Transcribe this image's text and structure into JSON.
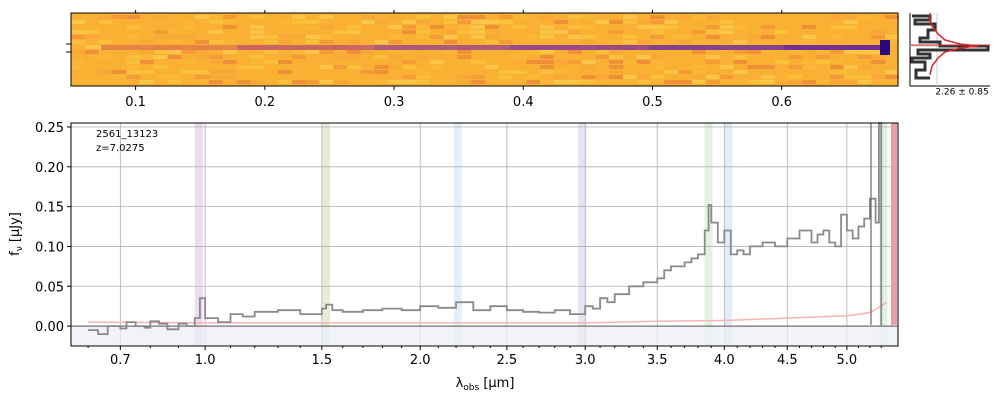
{
  "spectrum2d": {
    "xticks": [
      "0.1",
      "0.2",
      "0.3",
      "0.4",
      "0.5",
      "0.6"
    ],
    "tick_wavelengths": [
      0.1,
      0.2,
      0.3,
      0.4,
      0.5,
      0.6
    ],
    "xlim": [
      0.05,
      0.69
    ]
  },
  "profile": {
    "label": "2.26 ± 0.85"
  },
  "chart_data": {
    "type": "line",
    "title": "",
    "annotation_id": "2561_13123",
    "annotation_z": "z=7.0275",
    "xlabel_main": "λ",
    "xlabel_sub": "obs",
    "xlabel_unit": " [μm]",
    "ylabel_main": "f",
    "ylabel_sub": "ν",
    "ylabel_unit": " [μJy]",
    "xlim": [
      0.55,
      5.45
    ],
    "ylim": [
      -0.025,
      0.255
    ],
    "grid": true,
    "x_tick_labels": [
      "0.7",
      "1.0",
      "1.5",
      "2.0",
      "2.5",
      "3.0",
      "3.5",
      "4.0",
      "4.5",
      "5.0"
    ],
    "x_tick_values": [
      0.7,
      1.0,
      1.5,
      2.0,
      2.5,
      3.0,
      3.5,
      4.0,
      4.5,
      5.0
    ],
    "y_tick_labels": [
      "0.00",
      "0.05",
      "0.10",
      "0.15",
      "0.20",
      "0.25"
    ],
    "y_tick_values": [
      0.0,
      0.05,
      0.1,
      0.15,
      0.2,
      0.25
    ],
    "line_bands": [
      {
        "center": 0.976,
        "color": "#e9d3ee"
      },
      {
        "center": 1.52,
        "color": "#dfe9cc"
      },
      {
        "center": 2.21,
        "color": "#dcecf8"
      },
      {
        "center": 2.98,
        "color": "#e0dcef"
      },
      {
        "center": 3.88,
        "color": "#d9f0d6"
      },
      {
        "center": 4.03,
        "color": "#dbe8f6"
      },
      {
        "center": 5.32,
        "color": "#d9f0d6"
      }
    ],
    "series": [
      {
        "name": "flux",
        "color": "#8a8a8a",
        "x": [
          0.6,
          0.63,
          0.66,
          0.7,
          0.72,
          0.75,
          0.78,
          0.8,
          0.83,
          0.86,
          0.9,
          0.93,
          0.96,
          0.98,
          1.0,
          1.05,
          1.1,
          1.15,
          1.2,
          1.3,
          1.4,
          1.5,
          1.52,
          1.55,
          1.6,
          1.7,
          1.8,
          1.9,
          2.0,
          2.1,
          2.2,
          2.3,
          2.4,
          2.5,
          2.6,
          2.7,
          2.8,
          2.9,
          3.0,
          3.05,
          3.1,
          3.15,
          3.2,
          3.3,
          3.4,
          3.5,
          3.55,
          3.6,
          3.7,
          3.75,
          3.8,
          3.85,
          3.88,
          3.9,
          3.95,
          4.0,
          4.05,
          4.1,
          4.15,
          4.2,
          4.3,
          4.4,
          4.5,
          4.6,
          4.7,
          4.75,
          4.8,
          4.85,
          4.9,
          4.95,
          5.0,
          5.05,
          5.1,
          5.15,
          5.2,
          5.25,
          5.28,
          5.3
        ],
        "y": [
          -0.005,
          -0.01,
          0.0,
          -0.003,
          0.005,
          0.0,
          -0.002,
          0.006,
          0.003,
          -0.004,
          0.003,
          0.0,
          0.01,
          0.035,
          0.01,
          0.005,
          0.015,
          0.012,
          0.018,
          0.02,
          0.015,
          0.022,
          0.027,
          0.02,
          0.018,
          0.02,
          0.022,
          0.02,
          0.025,
          0.023,
          0.03,
          0.02,
          0.025,
          0.02,
          0.018,
          0.017,
          0.02,
          0.015,
          0.025,
          0.022,
          0.035,
          0.03,
          0.04,
          0.05,
          0.055,
          0.06,
          0.07,
          0.075,
          0.08,
          0.085,
          0.09,
          0.12,
          0.152,
          0.13,
          0.105,
          0.12,
          0.09,
          0.095,
          0.09,
          0.1,
          0.105,
          0.1,
          0.11,
          0.12,
          0.105,
          0.115,
          0.12,
          0.105,
          0.1,
          0.14,
          0.12,
          0.11,
          0.125,
          0.135,
          0.16,
          0.13,
          0.255,
          0.0
        ]
      },
      {
        "name": "error",
        "color": "#f4b4b4",
        "x": [
          0.6,
          1.0,
          1.5,
          2.0,
          2.5,
          3.0,
          3.5,
          4.0,
          4.5,
          5.0,
          5.2,
          5.3,
          5.35
        ],
        "y": [
          0.005,
          0.004,
          0.004,
          0.004,
          0.004,
          0.004,
          0.006,
          0.007,
          0.01,
          0.013,
          0.017,
          0.025,
          0.03
        ]
      }
    ]
  }
}
